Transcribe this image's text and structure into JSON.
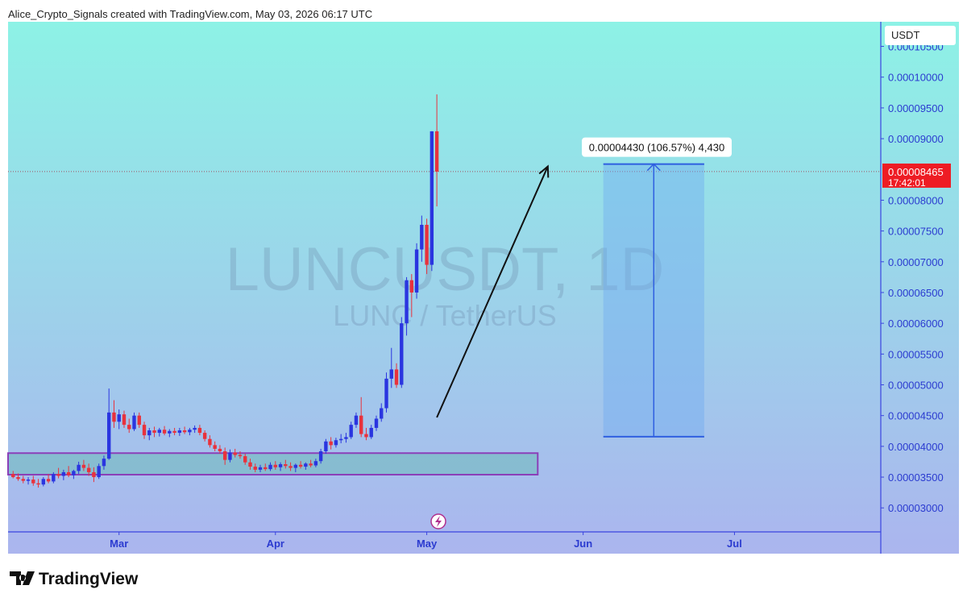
{
  "header": {
    "text": "Alice_Crypto_Signals created with TradingView.com, May 03, 2026 06:17 UTC"
  },
  "footer": {
    "logo": "TradingView"
  },
  "chart_data": {
    "type": "candlestick",
    "watermark": {
      "symbol": "LUNCUSDT, 1D",
      "description": "LUNC / TetherUS"
    },
    "currency": "USDT",
    "up_color": "#2a35e0",
    "down_color": "#e8323c",
    "xlim": [
      -1,
      172
    ],
    "xticks": [
      {
        "value": 21,
        "label": "Mar"
      },
      {
        "value": 52,
        "label": "Apr"
      },
      {
        "value": 82,
        "label": "May"
      },
      {
        "value": 113,
        "label": "Jun"
      },
      {
        "value": 143,
        "label": "Jul"
      }
    ],
    "ylim": [
      2.61e-05,
      0.000109
    ],
    "yticks": [
      {
        "value": 3e-05,
        "label": "0.00003000"
      },
      {
        "value": 3.5e-05,
        "label": "0.00003500"
      },
      {
        "value": 4e-05,
        "label": "0.00004000"
      },
      {
        "value": 4.5e-05,
        "label": "0.00004500"
      },
      {
        "value": 5e-05,
        "label": "0.00005000"
      },
      {
        "value": 5.5e-05,
        "label": "0.00005500"
      },
      {
        "value": 6e-05,
        "label": "0.00006000"
      },
      {
        "value": 6.5e-05,
        "label": "0.00006500"
      },
      {
        "value": 7e-05,
        "label": "0.00007000"
      },
      {
        "value": 7.5e-05,
        "label": "0.00007500"
      },
      {
        "value": 8e-05,
        "label": "0.00008000"
      },
      {
        "value": 9e-05,
        "label": "0.00009000"
      },
      {
        "value": 9.5e-05,
        "label": "0.00009500"
      },
      {
        "value": 0.0001,
        "label": "0.00010000"
      },
      {
        "value": 0.000105,
        "label": "0.00010500"
      }
    ],
    "open": [
      3.55e-05,
      3.5e-05,
      3.47e-05,
      3.44e-05,
      3.46e-05,
      3.4e-05,
      3.38e-05,
      3.47e-05,
      3.43e-05,
      3.55e-05,
      3.52e-05,
      3.58e-05,
      3.53e-05,
      3.6e-05,
      3.7e-05,
      3.65e-05,
      3.58e-05,
      3.5e-05,
      3.68e-05,
      3.8e-05,
      4.55e-05,
      4.4e-05,
      4.52e-05,
      4.35e-05,
      4.28e-05,
      4.5e-05,
      4.35e-05,
      4.18e-05,
      4.26e-05,
      4.22e-05,
      4.27e-05,
      4.21e-05,
      4.25e-05,
      4.22e-05,
      4.26e-05,
      4.23e-05,
      4.27e-05,
      4.3e-05,
      4.22e-05,
      4.12e-05,
      4.02e-05,
      3.96e-05,
      3.92e-05,
      3.78e-05,
      3.9e-05,
      3.86e-05,
      3.84e-05,
      3.74e-05,
      3.67e-05,
      3.62e-05,
      3.66e-05,
      3.63e-05,
      3.7e-05,
      3.66e-05,
      3.71e-05,
      3.68e-05,
      3.65e-05,
      3.7e-05,
      3.67e-05,
      3.72e-05,
      3.69e-05,
      3.76e-05,
      3.92e-05,
      4.08e-05,
      4.02e-05,
      4.1e-05,
      4.12e-05,
      4.15e-05,
      4.35e-05,
      4.5e-05,
      4.2e-05,
      4.15e-05,
      4.3e-05,
      4.45e-05,
      4.62e-05,
      5.1e-05,
      5.25e-05,
      5e-05,
      6e-05,
      6.7e-05,
      6.5e-05,
      7.2e-05,
      7.6e-05,
      6.95e-05,
      9.12e-05
    ],
    "high": [
      3.6e-05,
      3.56e-05,
      3.52e-05,
      3.5e-05,
      3.52e-05,
      3.47e-05,
      3.5e-05,
      3.55e-05,
      3.58e-05,
      3.65e-05,
      3.62e-05,
      3.68e-05,
      3.62e-05,
      3.75e-05,
      3.78e-05,
      3.72e-05,
      3.66e-05,
      3.72e-05,
      3.85e-05,
      4.94e-05,
      4.75e-05,
      4.6e-05,
      4.58e-05,
      4.45e-05,
      4.55e-05,
      4.55e-05,
      4.4e-05,
      4.3e-05,
      4.32e-05,
      4.3e-05,
      4.33e-05,
      4.28e-05,
      4.3e-05,
      4.3e-05,
      4.32e-05,
      4.3e-05,
      4.34e-05,
      4.35e-05,
      4.26e-05,
      4.18e-05,
      4.08e-05,
      4.02e-05,
      3.98e-05,
      3.95e-05,
      3.96e-05,
      3.92e-05,
      3.88e-05,
      3.8e-05,
      3.72e-05,
      3.7e-05,
      3.72e-05,
      3.74e-05,
      3.76e-05,
      3.74e-05,
      3.78e-05,
      3.74e-05,
      3.72e-05,
      3.76e-05,
      3.74e-05,
      3.78e-05,
      3.8e-05,
      3.96e-05,
      4.12e-05,
      4.15e-05,
      4.14e-05,
      4.2e-05,
      4.22e-05,
      4.4e-05,
      4.55e-05,
      4.8e-05,
      4.3e-05,
      4.35e-05,
      4.5e-05,
      4.7e-05,
      5.2e-05,
      5.6e-05,
      5.35e-05,
      6.1e-05,
      6.75e-05,
      6.8e-05,
      7.3e-05,
      7.75e-05,
      7.7e-05,
      9.12e-05,
      9.72e-05
    ],
    "low": [
      3.48e-05,
      3.44e-05,
      3.4e-05,
      3.38e-05,
      3.36e-05,
      3.33e-05,
      3.35e-05,
      3.4e-05,
      3.4e-05,
      3.48e-05,
      3.45e-05,
      3.5e-05,
      3.47e-05,
      3.55e-05,
      3.6e-05,
      3.52e-05,
      3.42e-05,
      3.47e-05,
      3.62e-05,
      3.78e-05,
      4.3e-05,
      4.28e-05,
      4.3e-05,
      4.22e-05,
      4.25e-05,
      4.3e-05,
      4.12e-05,
      4.1e-05,
      4.15e-05,
      4.16e-05,
      4.18e-05,
      4.15e-05,
      4.18e-05,
      4.17e-05,
      4.2e-05,
      4.18e-05,
      4.22e-05,
      4.18e-05,
      4.08e-05,
      3.98e-05,
      3.92e-05,
      3.88e-05,
      3.7e-05,
      3.74e-05,
      3.82e-05,
      3.8e-05,
      3.7e-05,
      3.62e-05,
      3.58e-05,
      3.58e-05,
      3.6e-05,
      3.6e-05,
      3.62e-05,
      3.6e-05,
      3.64e-05,
      3.6e-05,
      3.58e-05,
      3.64e-05,
      3.62e-05,
      3.66e-05,
      3.66e-05,
      3.72e-05,
      3.88e-05,
      3.95e-05,
      3.98e-05,
      4.05e-05,
      4.06e-05,
      4.12e-05,
      4.3e-05,
      4.15e-05,
      4.1e-05,
      4.12e-05,
      4.25e-05,
      4.4e-05,
      4.55e-05,
      4.95e-05,
      4.95e-05,
      4.95e-05,
      5.8e-05,
      6.1e-05,
      6.4e-05,
      7e-05,
      6.8e-05,
      6.85e-05,
      7.9e-05
    ],
    "close": [
      3.5e-05,
      3.47e-05,
      3.44e-05,
      3.46e-05,
      3.4e-05,
      3.38e-05,
      3.47e-05,
      3.43e-05,
      3.55e-05,
      3.52e-05,
      3.58e-05,
      3.53e-05,
      3.6e-05,
      3.7e-05,
      3.65e-05,
      3.58e-05,
      3.5e-05,
      3.68e-05,
      3.8e-05,
      4.55e-05,
      4.4e-05,
      4.52e-05,
      4.35e-05,
      4.28e-05,
      4.5e-05,
      4.35e-05,
      4.18e-05,
      4.26e-05,
      4.22e-05,
      4.27e-05,
      4.21e-05,
      4.25e-05,
      4.22e-05,
      4.26e-05,
      4.23e-05,
      4.27e-05,
      4.3e-05,
      4.22e-05,
      4.12e-05,
      4.02e-05,
      3.96e-05,
      3.92e-05,
      3.78e-05,
      3.9e-05,
      3.86e-05,
      3.84e-05,
      3.74e-05,
      3.67e-05,
      3.62e-05,
      3.66e-05,
      3.63e-05,
      3.7e-05,
      3.66e-05,
      3.71e-05,
      3.68e-05,
      3.65e-05,
      3.7e-05,
      3.67e-05,
      3.72e-05,
      3.69e-05,
      3.76e-05,
      3.92e-05,
      4.08e-05,
      4.02e-05,
      4.1e-05,
      4.12e-05,
      4.15e-05,
      4.35e-05,
      4.5e-05,
      4.2e-05,
      4.15e-05,
      4.3e-05,
      4.45e-05,
      4.62e-05,
      5.1e-05,
      5.25e-05,
      5e-05,
      6e-05,
      6.7e-05,
      6.5e-05,
      7.2e-05,
      7.6e-05,
      6.95e-05,
      9.12e-05,
      8.465e-05
    ],
    "last_price": {
      "value": 8.465e-05,
      "label": "0.00008465",
      "time": "17:42:01"
    },
    "zone": {
      "x": [
        -1,
        104
      ],
      "y": [
        3.54e-05,
        3.89e-05
      ]
    },
    "arrow": {
      "x": [
        84,
        106
      ],
      "y": [
        4.47e-05,
        8.55e-05
      ]
    },
    "measure": {
      "x": [
        117,
        137
      ],
      "y": [
        4.157e-05,
        8.587e-05
      ],
      "label": "0.00004430 (106.57%) 4,430"
    }
  }
}
